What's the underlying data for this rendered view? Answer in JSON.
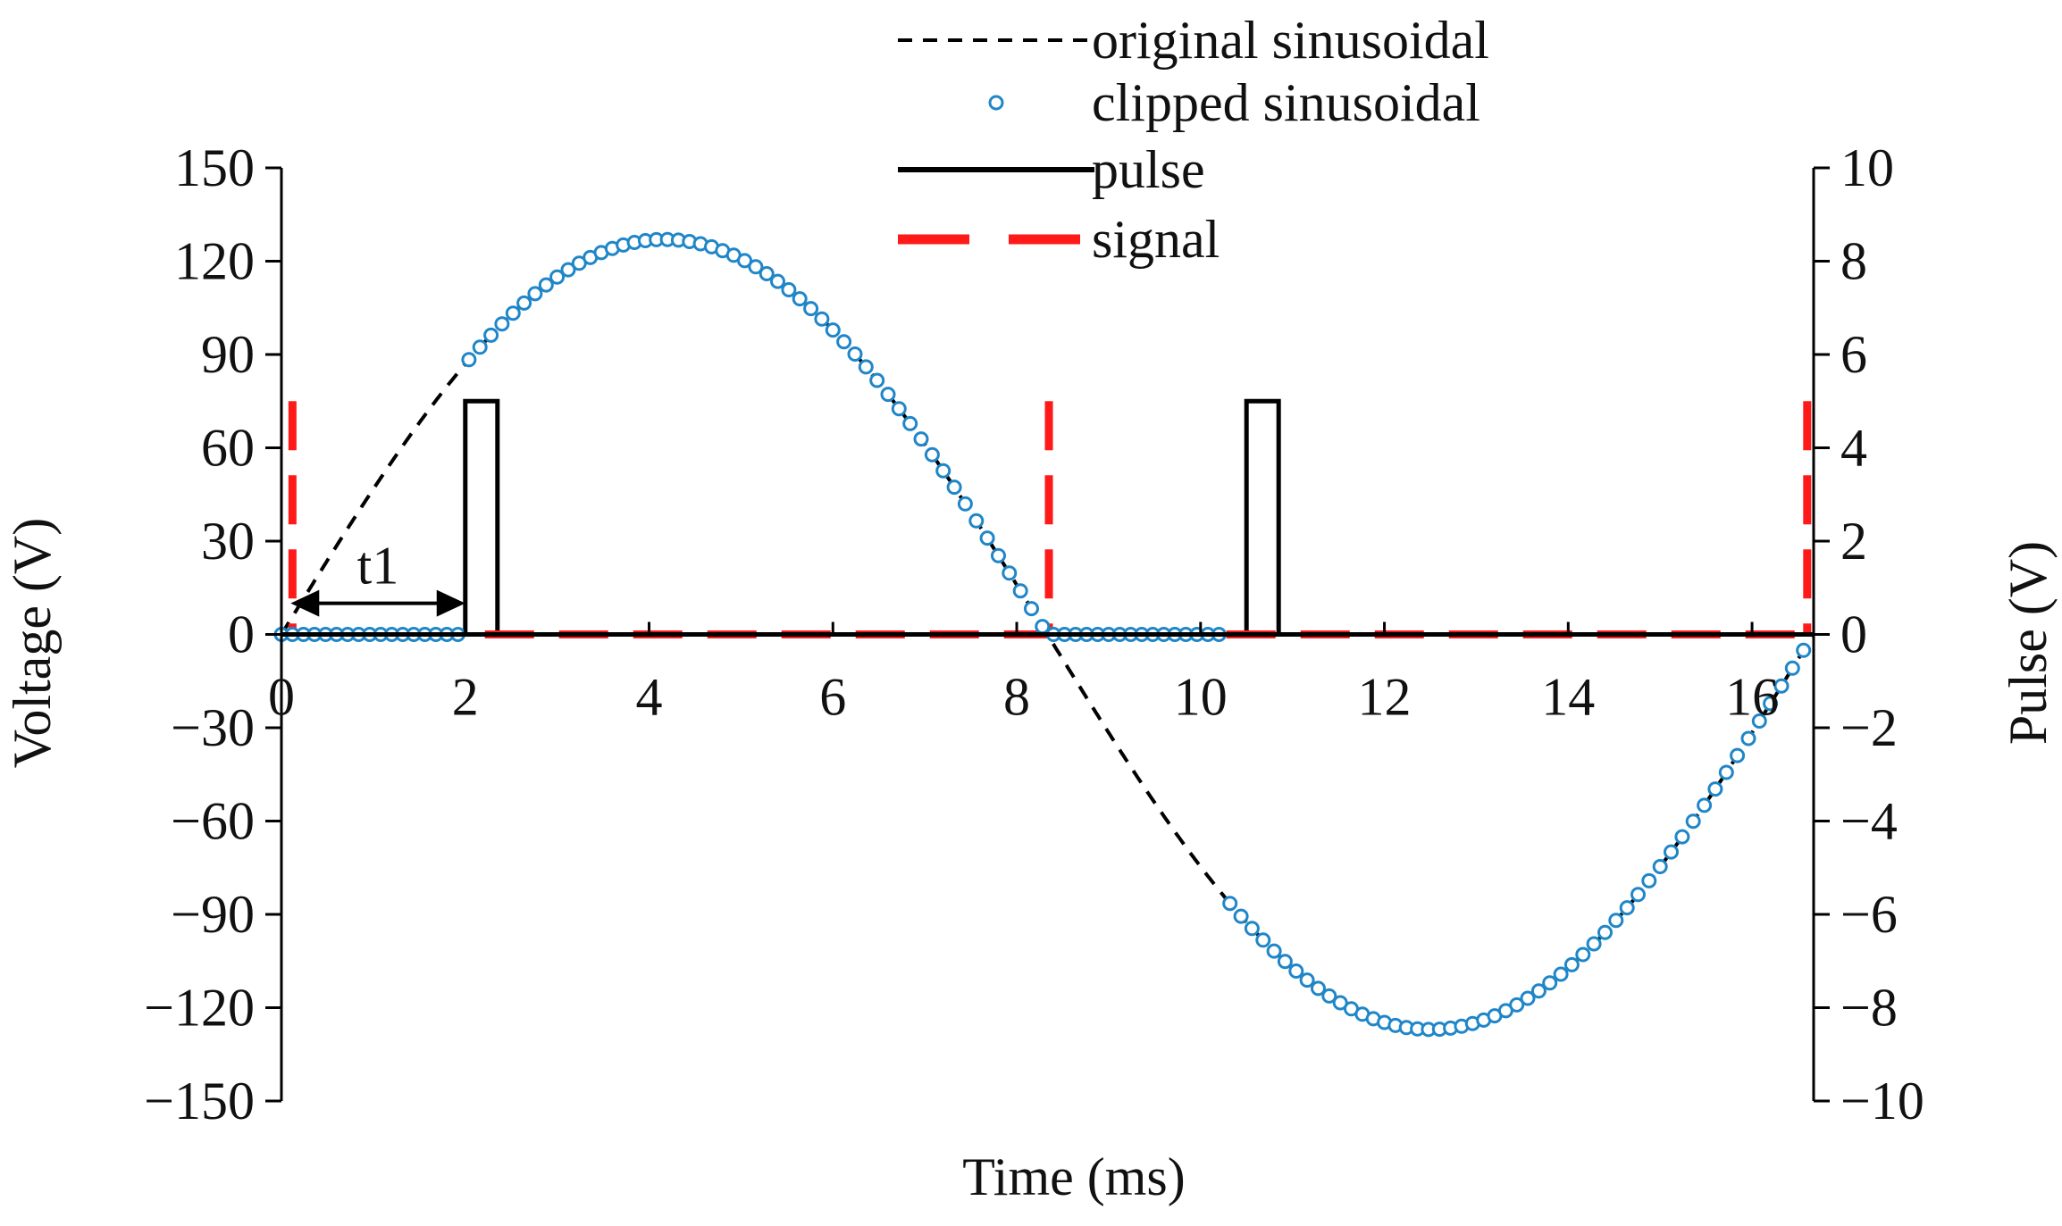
{
  "chart_data": {
    "type": "line",
    "xlabel": "Time (ms)",
    "ylabel": "Voltage (V)",
    "y2label": "Pulse (V)",
    "xlim": [
      0,
      16.67
    ],
    "ylim": [
      -150,
      150
    ],
    "y2lim": [
      -10,
      10
    ],
    "xticks": [
      0,
      2,
      4,
      6,
      8,
      10,
      12,
      14,
      16
    ],
    "xtick_labels": [
      "0",
      "2",
      "4",
      "6",
      "8",
      "10",
      "12",
      "14",
      "16"
    ],
    "yticks": [
      150,
      120,
      90,
      60,
      30,
      0,
      -30,
      -60,
      -90,
      -120,
      -150
    ],
    "ytick_labels": [
      "150",
      "120",
      "90",
      "60",
      "30",
      "0",
      "−30",
      "−60",
      "−90",
      "−120",
      "−150"
    ],
    "y2ticks": [
      10,
      8,
      6,
      4,
      2,
      0,
      -2,
      -4,
      -6,
      -8,
      -10
    ],
    "y2tick_labels": [
      "10",
      "8",
      "6",
      "4",
      "2",
      "0",
      "−2",
      "−4",
      "−6",
      "−8",
      "−10"
    ],
    "legend_position": "top-center",
    "annotation": {
      "text": "t1",
      "from_x": 0.1,
      "to_x": 2.0,
      "y": 10
    },
    "series": [
      {
        "name": "original sinusoidal",
        "style": "dashed",
        "color": "#000000",
        "axis": "left",
        "function": "y = 127 * sin(2*pi*60*t)",
        "amplitude": 127,
        "frequency_hz": 60,
        "x": [
          0,
          16.67
        ]
      },
      {
        "name": "clipped sinusoidal",
        "style": "markers",
        "color": "#1f86c8",
        "axis": "left",
        "function": "y = 127 * sin(2*pi*60*t) for 2.0<=t<=8.3 and 10.3<=t<=16.67, else 0",
        "on_intervals": [
          [
            2.0,
            8.3
          ],
          [
            10.3,
            16.67
          ]
        ],
        "sample_spacing_ms": 0.12
      },
      {
        "name": "pulse",
        "style": "solid",
        "color": "#000000",
        "axis": "right",
        "x": [
          0,
          2.0,
          2.0,
          2.35,
          2.35,
          10.5,
          10.5,
          10.85,
          10.85,
          16.67
        ],
        "y": [
          0,
          0,
          5,
          5,
          0,
          0,
          5,
          5,
          0,
          0
        ]
      },
      {
        "name": "signal",
        "style": "long-dashed",
        "color": "#ff1a1a",
        "axis": "right",
        "x": [
          0.12,
          0.12,
          0.12,
          8.35,
          8.35,
          8.35,
          16.6,
          16.6
        ],
        "y": [
          5,
          0,
          0,
          5,
          0,
          0,
          5,
          0
        ]
      }
    ]
  }
}
